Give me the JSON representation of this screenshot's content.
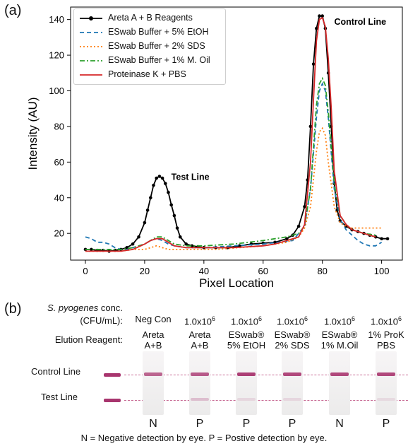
{
  "panel_a_label": "(a)",
  "panel_b_label": "(b)",
  "colors": {
    "areta": "#000000",
    "etoh": "#1f77b4",
    "sds": "#ff7f0e",
    "oil": "#2ca02c",
    "prok": "#d62728",
    "band": "#a8356e"
  },
  "chart_data": {
    "type": "line",
    "xlabel": "Pixel Location",
    "ylabel": "Intensity (AU)",
    "xlim": [
      -5,
      107
    ],
    "ylim": [
      5,
      147
    ],
    "xticks": [
      0,
      20,
      40,
      60,
      80,
      100
    ],
    "yticks": [
      20,
      40,
      60,
      80,
      100,
      120,
      140
    ],
    "legend_position": "top-left",
    "annotations": [
      {
        "text": "Test Line",
        "x": 29,
        "y": 50
      },
      {
        "text": "Control Line",
        "x": 84,
        "y": 137
      }
    ],
    "series": [
      {
        "name": "Areta A + B Reagents",
        "style": "solid-markers",
        "x": [
          0,
          2,
          4,
          6,
          8,
          10,
          12,
          14,
          16,
          18,
          20,
          21,
          22,
          23,
          24,
          25,
          26,
          27,
          28,
          29,
          30,
          31,
          32,
          34,
          36,
          38,
          40,
          44,
          48,
          52,
          56,
          60,
          64,
          68,
          70,
          72,
          74,
          75,
          76,
          77,
          78,
          79,
          80,
          81,
          82,
          83,
          84,
          85,
          86,
          88,
          90,
          92,
          94,
          96,
          98,
          100,
          102
        ],
        "y": [
          11,
          11,
          10.5,
          10.5,
          10,
          10.5,
          11,
          12,
          14,
          18,
          26,
          33,
          40,
          47,
          51,
          52,
          51,
          48,
          43,
          36,
          30,
          23,
          18,
          14,
          13,
          12.5,
          12,
          12,
          12,
          13,
          14,
          14.5,
          15,
          17,
          19,
          24,
          35,
          50,
          80,
          115,
          135,
          142,
          142,
          135,
          110,
          80,
          48,
          33,
          27,
          24,
          22,
          21,
          20,
          19,
          18,
          17,
          17
        ]
      },
      {
        "name": "ESwab Buffer + 5% EtOH",
        "style": "dashed",
        "x": [
          0,
          2,
          4,
          6,
          8,
          10,
          12,
          14,
          16,
          18,
          20,
          22,
          24,
          26,
          28,
          30,
          34,
          40,
          50,
          60,
          70,
          74,
          76,
          78,
          79,
          80,
          81,
          82,
          84,
          86,
          88,
          90,
          92,
          94,
          96,
          98,
          100
        ],
        "y": [
          18,
          17,
          15,
          15,
          14,
          12,
          11,
          11,
          12,
          13,
          14,
          16,
          17,
          16,
          14,
          13,
          12,
          12,
          13,
          14,
          16,
          24,
          45,
          85,
          100,
          104,
          100,
          85,
          45,
          28,
          22,
          19,
          16,
          14,
          13,
          13,
          15
        ]
      },
      {
        "name": "ESwab Buffer + 2% SDS",
        "style": "dotted",
        "x": [
          0,
          4,
          8,
          12,
          16,
          20,
          22,
          24,
          26,
          28,
          30,
          36,
          44,
          52,
          60,
          68,
          72,
          74,
          76,
          78,
          79,
          80,
          81,
          82,
          84,
          86,
          88,
          90,
          94,
          98,
          100
        ],
        "y": [
          10,
          10,
          10,
          10,
          11,
          11,
          12,
          13,
          12,
          11,
          11,
          11,
          11,
          12,
          13,
          15,
          18,
          23,
          35,
          66,
          77,
          79,
          75,
          60,
          35,
          26,
          24,
          23,
          23,
          23,
          23
        ]
      },
      {
        "name": "ESwab Buffer + 1% M. Oil",
        "style": "dashdot",
        "x": [
          0,
          4,
          8,
          12,
          16,
          20,
          22,
          24,
          26,
          28,
          30,
          34,
          40,
          50,
          60,
          64,
          68,
          72,
          74,
          76,
          78,
          79,
          80,
          81,
          82,
          84,
          86,
          88,
          90,
          94,
          98
        ],
        "y": [
          11,
          11,
          11,
          11,
          12,
          14,
          16,
          18,
          18,
          16,
          14,
          13,
          13,
          14,
          16,
          17,
          18,
          20,
          24,
          45,
          92,
          104,
          107,
          103,
          88,
          48,
          30,
          25,
          22,
          20,
          19
        ]
      },
      {
        "name": "Proteinase K + PBS",
        "style": "solid",
        "x": [
          0,
          4,
          8,
          12,
          16,
          20,
          22,
          24,
          26,
          28,
          30,
          34,
          40,
          50,
          60,
          64,
          68,
          72,
          74,
          76,
          77,
          78,
          79,
          80,
          81,
          82,
          83,
          84,
          86,
          88,
          90,
          94,
          98
        ],
        "y": [
          10,
          10,
          10,
          10,
          11,
          14,
          16,
          17,
          17,
          15,
          13,
          12,
          12,
          12,
          13,
          14,
          16,
          18,
          25,
          60,
          95,
          128,
          140,
          141,
          136,
          118,
          90,
          55,
          30,
          25,
          22,
          20,
          18
        ]
      }
    ]
  },
  "panel_b": {
    "species": "S. pyogenes",
    "conc_suffix": " conc.",
    "conc_unit": "(CFU/mL):",
    "elution_label": "Elution Reagent:",
    "control_line_label": "Control Line",
    "test_line_label": "Test Line",
    "footer": "N = Negative detection by eye.  P = Postive detection by eye.",
    "strips": [
      {
        "conc": "Neg Con",
        "conc_exp": "",
        "reagent_1": "Areta",
        "reagent_2": "A+B",
        "result": "N",
        "control_intensity": 0.75,
        "test_intensity": 0
      },
      {
        "conc": "1.0x10",
        "conc_exp": "6",
        "reagent_1": "Areta",
        "reagent_2": "A+B",
        "result": "P",
        "control_intensity": 0.8,
        "test_intensity": 0.25
      },
      {
        "conc": "1.0x10",
        "conc_exp": "6",
        "reagent_1": "ESwab®",
        "reagent_2": "5% EtOH",
        "result": "P",
        "control_intensity": 0.95,
        "test_intensity": 0.12
      },
      {
        "conc": "1.0x10",
        "conc_exp": "6",
        "reagent_1": "ESwab®",
        "reagent_2": "2% SDS",
        "result": "P",
        "control_intensity": 0.9,
        "test_intensity": 0.12
      },
      {
        "conc": "1.0x10",
        "conc_exp": "6",
        "reagent_1": "ESwab®",
        "reagent_2": "1% M.Oil",
        "result": "N",
        "control_intensity": 0.9,
        "test_intensity": 0
      },
      {
        "conc": "1.0x10",
        "conc_exp": "6",
        "reagent_1": "1% ProK",
        "reagent_2": "PBS",
        "result": "P",
        "control_intensity": 0.9,
        "test_intensity": 0.1
      }
    ]
  }
}
